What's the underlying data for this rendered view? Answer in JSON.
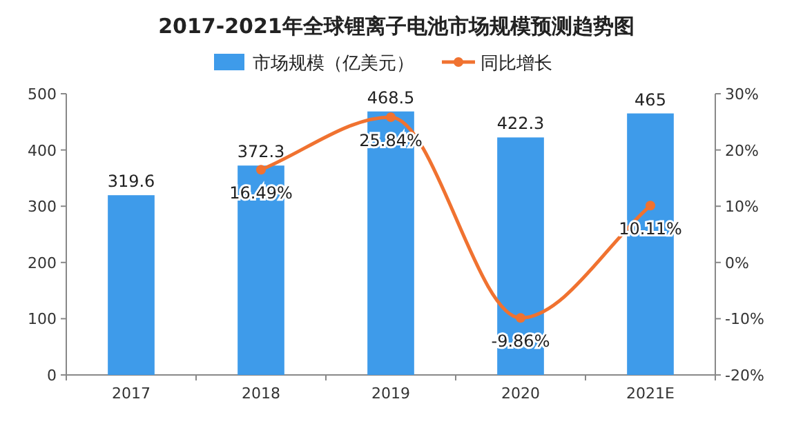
{
  "chart_data": {
    "type": "bar",
    "title": "2017-2021年全球锂离子电池市场规模预测趋势图",
    "categories": [
      "2017",
      "2018",
      "2019",
      "2020",
      "2021E"
    ],
    "series": [
      {
        "name": "市场规模（亿美元）",
        "color": "#3e9bea",
        "values": [
          319.6,
          372.3,
          468.5,
          422.3,
          465
        ],
        "value_labels": [
          "319.6",
          "372.3",
          "468.5",
          "422.3",
          "465"
        ]
      },
      {
        "name": "同比增长",
        "type": "line",
        "axis": "y2",
        "color": "#f07230",
        "values": [
          null,
          16.49,
          25.84,
          -9.86,
          10.11
        ],
        "value_labels": [
          null,
          "16.49%",
          "25.84%",
          "-9.86%",
          "10.11%"
        ]
      }
    ],
    "ylim": [
      0,
      500
    ],
    "yticks": [
      0,
      100,
      200,
      300,
      400,
      500
    ],
    "y2lim": [
      -20,
      30
    ],
    "y2ticks": [
      {
        "value": -20,
        "label": "-20%"
      },
      {
        "value": -10,
        "label": "-10%"
      },
      {
        "value": 0,
        "label": "0%"
      },
      {
        "value": 10,
        "label": "10%"
      },
      {
        "value": 20,
        "label": "20%"
      },
      {
        "value": 30,
        "label": "30%"
      }
    ],
    "legend": "top",
    "marker": "circle",
    "grid": false
  }
}
